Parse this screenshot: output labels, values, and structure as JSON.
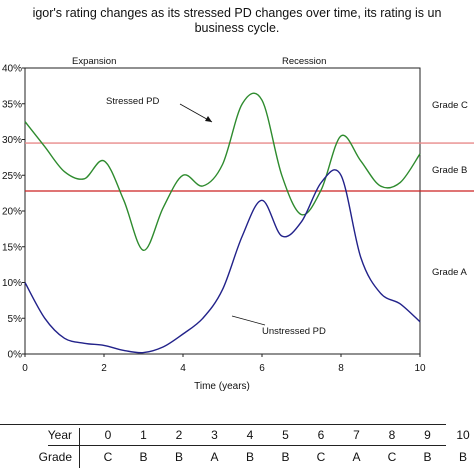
{
  "title_line1": "igor's rating changes as its stressed PD changes over time, its rating is un",
  "title_line2": "business cycle.",
  "chart_data": {
    "type": "line",
    "xlabel": "Time (years)",
    "xlim": [
      0,
      10
    ],
    "x_ticks": [
      "0",
      "2",
      "4",
      "6",
      "8",
      "10"
    ],
    "y_ticks": [
      "0%",
      "5%",
      "10%",
      "15%",
      "20%",
      "25%",
      "30%",
      "35%",
      "40%"
    ],
    "ylim": [
      0,
      40
    ],
    "annotations": [
      "Expansion",
      "Recession",
      "Stressed PD",
      "Unstressed PD",
      "Grade C",
      "Grade B",
      "Grade A"
    ],
    "thresholds": [
      {
        "y": 29.5,
        "color": "#e88a8a"
      },
      {
        "y": 22.8,
        "color": "#cc2222"
      }
    ],
    "series": [
      {
        "name": "Stressed PD",
        "color": "#2e8b2e",
        "x": [
          0,
          0.5,
          1,
          1.5,
          2,
          2.5,
          3,
          3.5,
          4,
          4.5,
          5,
          5.5,
          6,
          6.5,
          7,
          7.5,
          8,
          8.5,
          9,
          9.5,
          10
        ],
        "y": [
          32.5,
          29,
          25.5,
          24.5,
          27,
          21.5,
          14.5,
          20.5,
          25,
          23.5,
          26.5,
          35,
          35.5,
          25,
          19.5,
          23,
          30.5,
          27,
          23.5,
          24,
          28
        ]
      },
      {
        "name": "Unstressed PD",
        "color": "#22228a",
        "x": [
          0,
          0.5,
          1,
          1.5,
          2,
          2.5,
          3,
          3.5,
          4,
          4.5,
          5,
          5.5,
          6,
          6.5,
          7,
          7.5,
          8,
          8.5,
          9,
          9.5,
          10
        ],
        "y": [
          10,
          5,
          2.2,
          1.5,
          1.2,
          0.5,
          0.2,
          1,
          2.8,
          5,
          9,
          16.5,
          21.5,
          16.5,
          18.5,
          24,
          25,
          13.5,
          8.5,
          7,
          4.5
        ]
      }
    ]
  },
  "table": {
    "year_label": "Year",
    "grade_label": "Grade",
    "years": [
      "0",
      "1",
      "2",
      "3",
      "4",
      "5",
      "6",
      "7",
      "8",
      "9",
      "10"
    ],
    "grades": [
      "C",
      "B",
      "B",
      "A",
      "B",
      "B",
      "C",
      "A",
      "C",
      "B",
      "B"
    ]
  }
}
